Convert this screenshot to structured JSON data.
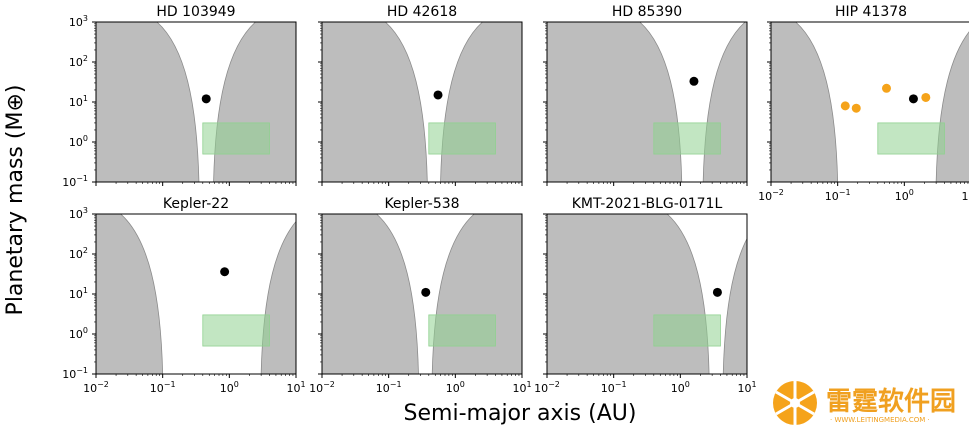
{
  "figure": {
    "xlabel": "Semi-major axis (AU)",
    "ylabel": "Planetary mass (M⊕)",
    "watermark": {
      "text": "雷霆软件园",
      "subtext": "· WWW.LEITINGMEDIA.COM ·"
    }
  },
  "chart_data": [
    {
      "type": "scatter",
      "title": "HD 103949",
      "xscale": "log",
      "yscale": "log",
      "xlim": [
        0.01,
        10
      ],
      "ylim": [
        0.1,
        1000
      ],
      "excluded_regions": [
        {
          "inner_edge_au": 0.35
        },
        {
          "outer_edge_au": 0.58
        }
      ],
      "habitable_zone": {
        "a": [
          0.4,
          4.0
        ],
        "m": [
          0.5,
          3.0
        ]
      },
      "points": [
        {
          "a": 0.45,
          "m": 12,
          "kind": "known"
        }
      ]
    },
    {
      "type": "scatter",
      "title": "HD 42618",
      "xscale": "log",
      "yscale": "log",
      "xlim": [
        0.01,
        10
      ],
      "ylim": [
        0.1,
        1000
      ],
      "excluded_regions": [
        {
          "inner_edge_au": 0.38
        },
        {
          "outer_edge_au": 0.6
        }
      ],
      "habitable_zone": {
        "a": [
          0.4,
          4.0
        ],
        "m": [
          0.5,
          3.0
        ]
      },
      "points": [
        {
          "a": 0.55,
          "m": 15,
          "kind": "known"
        }
      ]
    },
    {
      "type": "scatter",
      "title": "HD 85390",
      "xscale": "log",
      "yscale": "log",
      "xlim": [
        0.01,
        10
      ],
      "ylim": [
        0.1,
        1000
      ],
      "excluded_regions": [
        {
          "inner_edge_au": 1.05
        },
        {
          "outer_edge_au": 2.2
        }
      ],
      "habitable_zone": {
        "a": [
          0.4,
          4.0
        ],
        "m": [
          0.5,
          3.0
        ]
      },
      "points": [
        {
          "a": 1.6,
          "m": 33,
          "kind": "known"
        }
      ]
    },
    {
      "type": "scatter",
      "title": "HIP 41378",
      "xscale": "log",
      "yscale": "log",
      "xlim": [
        0.01,
        10
      ],
      "ylim": [
        0.1,
        1000
      ],
      "excluded_regions": [
        {
          "inner_edge_au": 0.1
        },
        {
          "outer_edge_au": 3.0
        }
      ],
      "habitable_zone": {
        "a": [
          0.4,
          4.0
        ],
        "m": [
          0.5,
          3.0
        ]
      },
      "points": [
        {
          "a": 0.13,
          "m": 8,
          "kind": "other"
        },
        {
          "a": 0.19,
          "m": 7,
          "kind": "other"
        },
        {
          "a": 0.54,
          "m": 22,
          "kind": "other"
        },
        {
          "a": 1.37,
          "m": 12,
          "kind": "known"
        },
        {
          "a": 2.1,
          "m": 13,
          "kind": "other"
        }
      ]
    },
    {
      "type": "scatter",
      "title": "Kepler-22",
      "xscale": "log",
      "yscale": "log",
      "xlim": [
        0.01,
        10
      ],
      "ylim": [
        0.1,
        1000
      ],
      "excluded_regions": [
        {
          "inner_edge_au": 0.1
        },
        {
          "outer_edge_au": 3.0
        }
      ],
      "habitable_zone": {
        "a": [
          0.4,
          4.0
        ],
        "m": [
          0.5,
          3.0
        ]
      },
      "points": [
        {
          "a": 0.85,
          "m": 36,
          "kind": "known"
        }
      ]
    },
    {
      "type": "scatter",
      "title": "Kepler-538",
      "xscale": "log",
      "yscale": "log",
      "xlim": [
        0.01,
        10
      ],
      "ylim": [
        0.1,
        1000
      ],
      "excluded_regions": [
        {
          "inner_edge_au": 0.28
        },
        {
          "outer_edge_au": 0.45
        }
      ],
      "habitable_zone": {
        "a": [
          0.4,
          4.0
        ],
        "m": [
          0.5,
          3.0
        ]
      },
      "points": [
        {
          "a": 0.36,
          "m": 11,
          "kind": "known"
        }
      ]
    },
    {
      "type": "scatter",
      "title": "KMT-2021-BLG-0171L",
      "xscale": "log",
      "yscale": "log",
      "xlim": [
        0.01,
        10
      ],
      "ylim": [
        0.1,
        1000
      ],
      "excluded_regions": [
        {
          "inner_edge_au": 2.7
        },
        {
          "outer_edge_au": 4.4
        }
      ],
      "habitable_zone": {
        "a": [
          0.4,
          4.0
        ],
        "m": [
          0.5,
          3.0
        ]
      },
      "points": [
        {
          "a": 3.6,
          "m": 11,
          "kind": "known"
        }
      ]
    }
  ],
  "axis": {
    "xticks": [
      "10",
      "10",
      "10",
      "10"
    ],
    "xtick_exponents": [
      "−2",
      "−1",
      "0",
      "1"
    ],
    "yticks": [
      "10",
      "10",
      "10",
      "10",
      "10"
    ],
    "ytick_exponents": [
      "−1",
      "0",
      "1",
      "2",
      "3"
    ]
  },
  "colors": {
    "excluded": "#bdbdbd",
    "excluded_edge": "#8c8c8c",
    "habitable_zone": "#8fd18f",
    "known_planet": "#000000",
    "other_planet": "#f5a31a"
  }
}
